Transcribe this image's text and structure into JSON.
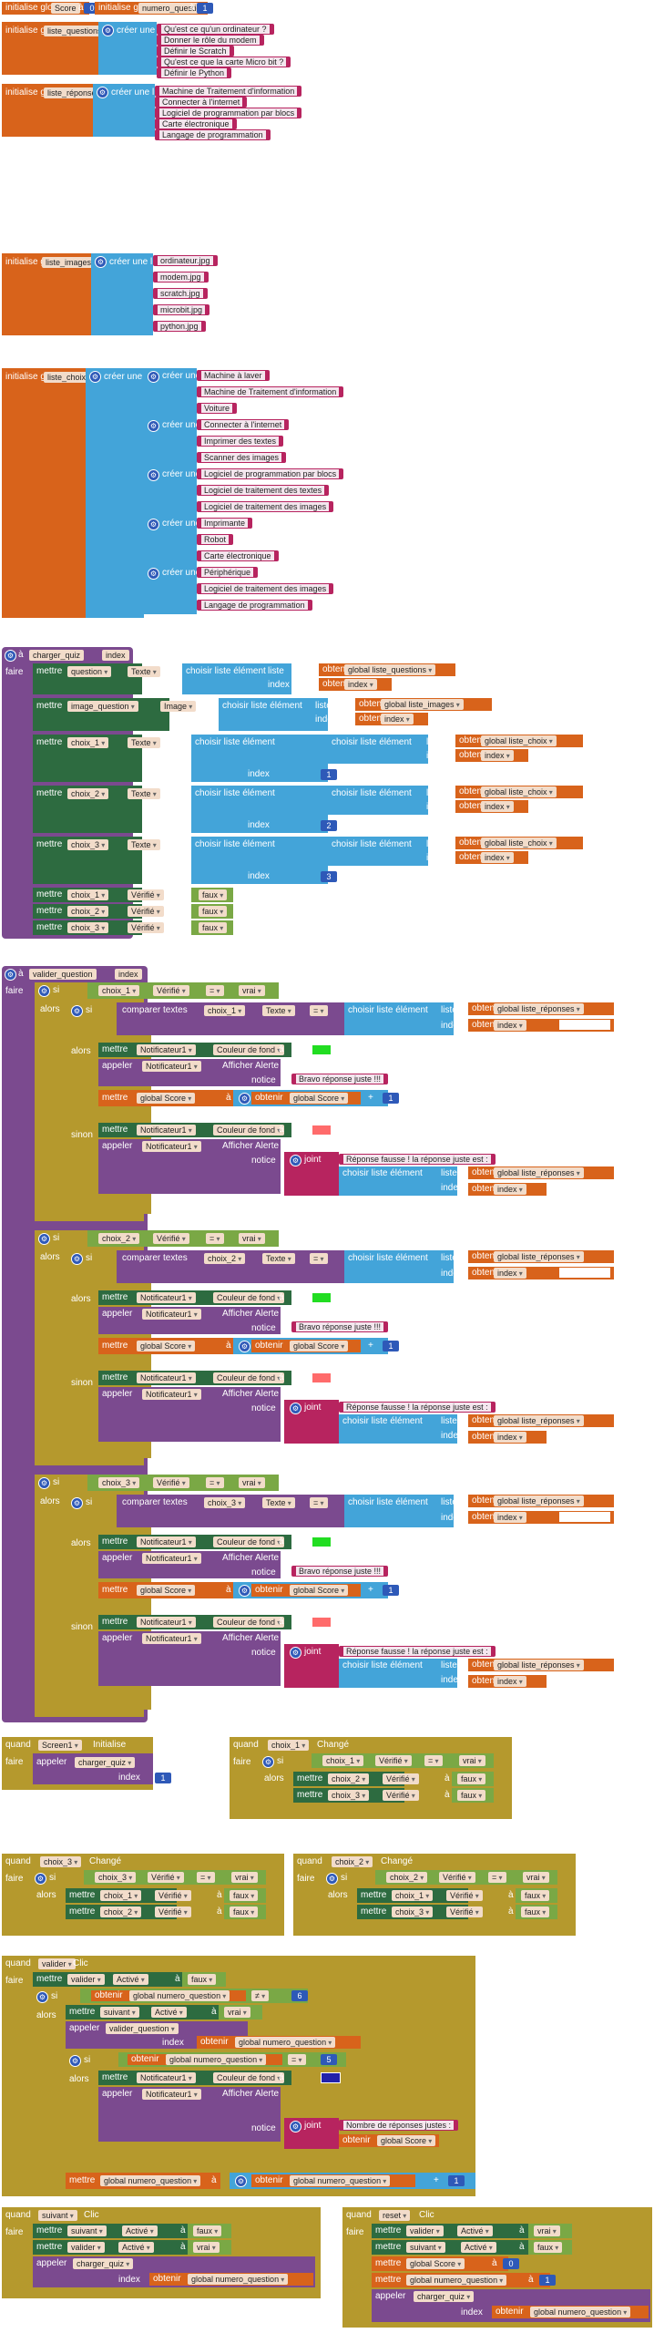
{
  "globals": {
    "init_label": "initialise global",
    "a": "à",
    "create_list": "créer une liste",
    "score": {
      "name": "Score",
      "value": "0"
    },
    "numero_question": {
      "name": "numero_question",
      "value": "1"
    },
    "liste_questions": {
      "name": "liste_questions",
      "items": [
        "Qu'est ce qu'un ordinateur ?",
        "Donner le rôle du modem",
        "Définir le Scratch",
        "Qu'est ce que la carte Micro bit ?",
        "Définir le Python"
      ]
    },
    "liste_reponses": {
      "name": "liste_réponses",
      "items": [
        "Machine de Traitement d'information",
        "Connecter à l'internet",
        "Logiciel de programmation par blocs",
        "Carte électronique",
        "Langage de programmation"
      ]
    },
    "liste_images": {
      "name": "liste_images",
      "items": [
        "ordinateur.jpg",
        "modem.jpg",
        "scratch.jpg",
        "microbit.jpg",
        "python.jpg"
      ]
    },
    "liste_choix": {
      "name": "liste_choix",
      "groups": [
        [
          "Machine à laver",
          "Machine de Traitement d'information",
          "Voiture"
        ],
        [
          "Connecter à l'internet",
          "Imprimer des textes",
          "Scanner des images"
        ],
        [
          "Logiciel de programmation par blocs",
          "Logiciel de traitement des textes",
          "Logiciel de traitement des images"
        ],
        [
          "Imprimante",
          "Robot",
          "Carte électronique"
        ],
        [
          "Périphérique",
          "Logiciel de traitement des images",
          "Langage de programmation"
        ]
      ]
    }
  },
  "charger_quiz": {
    "to": "à",
    "name": "charger_quiz",
    "param": "index",
    "do": "faire",
    "set": "mettre",
    "texte": "Texte",
    "image": "Image",
    "checked": "Vérifié",
    "a": "à",
    "select": "choisir liste élément",
    "list": "liste",
    "index": "index",
    "get": "obtenir",
    "get_gq": "global liste_questions",
    "get_gi": "global liste_images",
    "get_gc": "global liste_choix",
    "get_index": "index",
    "question": "question",
    "image_question": "image_question",
    "choix1": "choix_1",
    "choix2": "choix_2",
    "choix3": "choix_3",
    "n1": "1",
    "n2": "2",
    "n3": "3",
    "false": "faux"
  },
  "valider_question": {
    "to": "à",
    "name": "valider_question",
    "param": "index",
    "do": "faire",
    "if": "si",
    "then": "alors",
    "else": "sinon",
    "checked": "Vérifié",
    "eq": "=",
    "true": "vrai",
    "compare": "comparer textes",
    "texte": "Texte",
    "select": "choisir liste élément",
    "list": "liste",
    "index": "index",
    "get": "obtenir",
    "get_gr": "global liste_réponses",
    "get_index": "index",
    "set": "mettre",
    "notif": "Notificateur1",
    "bg": "Couleur de fond",
    "a": "à",
    "call": "appeler",
    "alert": "Afficher Alerte",
    "notice": "notice",
    "good": "Bravo réponse juste !!!",
    "score": "global Score",
    "get_score": "global Score",
    "plus": "+",
    "one": "1",
    "join": "joint",
    "bad": "Réponse fausse ! la réponse juste est :",
    "choix": [
      "choix_1",
      "choix_2",
      "choix_3"
    ]
  },
  "events": {
    "when": "quand",
    "do": "faire",
    "if": "si",
    "then": "alors",
    "set": "mettre",
    "a": "à",
    "checked": "Vérifié",
    "eq": "=",
    "true": "vrai",
    "false": "faux",
    "call": "appeler",
    "index": "index",
    "one": "1",
    "screen_init": {
      "comp": "Screen1",
      "event": "Initialise",
      "proc": "charger_quiz"
    },
    "choix1_changed": {
      "comp": "choix_1",
      "event": "Changé",
      "other1": "choix_2",
      "other2": "choix_3"
    },
    "choix3_changed": {
      "comp": "choix_3",
      "event": "Changé",
      "other1": "choix_1",
      "other2": "choix_2"
    },
    "choix2_changed": {
      "comp": "choix_2",
      "event": "Changé",
      "other1": "choix_1",
      "other2": "choix_3"
    },
    "valider_click": {
      "comp": "valider",
      "event": "Clic",
      "enabled": "Activé",
      "false": "faux",
      "get_nq": "global numero_question",
      "neq": "≠",
      "six": "6",
      "suivant": "suivant",
      "true": "vrai",
      "proc": "valider_question",
      "get": "obtenir",
      "five": "5",
      "notif": "Notificateur1",
      "bg": "Couleur de fond",
      "call": "appeler",
      "alert": "Afficher Alerte",
      "notice": "notice",
      "join": "joint",
      "nb": "Nombre de réponses justes : ",
      "get_score": "global Score",
      "set_nq": "global numero_question",
      "plus": "+"
    },
    "suivant_click": {
      "comp": "suivant",
      "event": "Clic",
      "enabled": "Activé",
      "false": "faux",
      "valider": "valider",
      "true": "vrai",
      "proc": "charger_quiz",
      "get": "obtenir",
      "get_nq": "global numero_question"
    },
    "reset_click": {
      "comp": "reset",
      "event": "Clic",
      "enabled": "Activé",
      "valider": "valider",
      "suivant": "suivant",
      "true": "vrai",
      "false": "faux",
      "score": "global Score",
      "zero": "0",
      "nq": "global numero_question",
      "proc": "charger_quiz",
      "get": "obtenir",
      "get_nq": "global numero_question"
    }
  }
}
